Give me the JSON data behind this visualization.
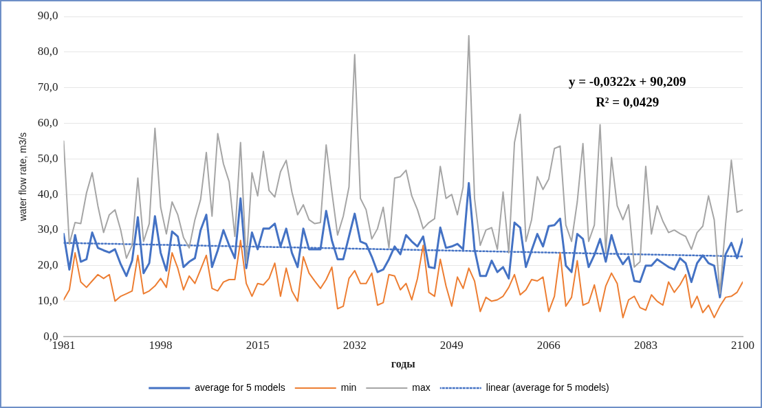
{
  "chart_data": {
    "type": "line",
    "xlabel": "годы",
    "ylabel": "water flow rate, m3/s",
    "marker": "none",
    "grid": "y",
    "legend": "bottom",
    "xlim": [
      1981,
      2100
    ],
    "xticks": [
      1981,
      1998,
      2015,
      2032,
      2049,
      2066,
      2083,
      2100
    ],
    "ylim": [
      0,
      90
    ],
    "yticks": [
      {
        "value": 0,
        "label": "0,0"
      },
      {
        "value": 10,
        "label": "10,0"
      },
      {
        "value": 20,
        "label": "20,0"
      },
      {
        "value": 30,
        "label": "30,0"
      },
      {
        "value": 40,
        "label": "40,0"
      },
      {
        "value": 50,
        "label": "50,0"
      },
      {
        "value": 60,
        "label": "60,0"
      },
      {
        "value": 70,
        "label": "70,0"
      },
      {
        "value": 80,
        "label": "80,0"
      },
      {
        "value": 90,
        "label": "90,0"
      }
    ],
    "x": [
      1981,
      1982,
      1983,
      1984,
      1985,
      1986,
      1987,
      1988,
      1989,
      1990,
      1991,
      1992,
      1993,
      1994,
      1995,
      1996,
      1997,
      1998,
      1999,
      2000,
      2001,
      2002,
      2003,
      2004,
      2005,
      2006,
      2007,
      2008,
      2009,
      2010,
      2011,
      2012,
      2013,
      2014,
      2015,
      2016,
      2017,
      2018,
      2019,
      2020,
      2021,
      2022,
      2023,
      2024,
      2025,
      2026,
      2027,
      2028,
      2029,
      2030,
      2031,
      2032,
      2033,
      2034,
      2035,
      2036,
      2037,
      2038,
      2039,
      2040,
      2041,
      2042,
      2043,
      2044,
      2045,
      2046,
      2047,
      2048,
      2049,
      2050,
      2051,
      2052,
      2053,
      2054,
      2055,
      2056,
      2057,
      2058,
      2059,
      2060,
      2061,
      2062,
      2063,
      2064,
      2065,
      2066,
      2067,
      2068,
      2069,
      2070,
      2071,
      2072,
      2073,
      2074,
      2075,
      2076,
      2077,
      2078,
      2079,
      2080,
      2081,
      2082,
      2083,
      2084,
      2085,
      2086,
      2087,
      2088,
      2089,
      2090,
      2091,
      2092,
      2093,
      2094,
      2095,
      2096,
      2097,
      2098,
      2099,
      2100
    ],
    "series": [
      {
        "name": "average for 5 models",
        "color": "#4472c4",
        "line_style": "solid",
        "values": [
          28.9,
          18.9,
          28.6,
          21.1,
          21.8,
          29.3,
          25,
          24.3,
          23.7,
          24.6,
          20.4,
          17.1,
          21.4,
          33.6,
          17.9,
          20.7,
          33.9,
          23.6,
          18.6,
          29.6,
          28.2,
          19.6,
          21.1,
          22.1,
          30,
          34.3,
          19.6,
          24.3,
          30,
          25.7,
          22.1,
          38.9,
          19.3,
          29.3,
          24.6,
          30.4,
          30.4,
          31.8,
          25.4,
          30.4,
          23.6,
          19.6,
          30.4,
          24.6,
          24.6,
          24.6,
          35.4,
          27.1,
          21.8,
          21.8,
          28.2,
          34.6,
          26.8,
          26.1,
          22.5,
          18.2,
          18.9,
          21.8,
          25.4,
          23.2,
          28.6,
          26.8,
          25.4,
          28.2,
          19.6,
          19.3,
          30.7,
          25,
          25.4,
          26.1,
          24.6,
          43.2,
          24.6,
          17.1,
          17.1,
          21.4,
          18.2,
          19.6,
          16.4,
          32.1,
          30.7,
          19.6,
          24.3,
          28.9,
          25.4,
          31.1,
          31.4,
          33.2,
          20,
          18.2,
          28.9,
          27.5,
          19.6,
          23,
          27.5,
          21.1,
          28.6,
          23.2,
          20.4,
          22.5,
          15.7,
          15.4,
          20,
          20,
          21.8,
          20.7,
          19.6,
          18.9,
          22.1,
          20.7,
          15.4,
          20.7,
          22.9,
          20.7,
          20,
          11.1,
          23.2,
          26.4,
          22.1,
          27.5
        ]
      },
      {
        "name": "min",
        "color": "#ed7d31",
        "line_style": "solid",
        "values": [
          10.4,
          13.2,
          23.6,
          15.4,
          13.9,
          15.7,
          17.5,
          16.4,
          17.5,
          10,
          11.4,
          12.1,
          12.9,
          22.9,
          12.1,
          12.9,
          14.3,
          16.4,
          13.9,
          23.6,
          19.3,
          13.2,
          17.1,
          15,
          18.9,
          22.9,
          13.6,
          12.9,
          15.4,
          16.1,
          16.1,
          27.1,
          15,
          11.4,
          15,
          14.6,
          16.4,
          20.7,
          11.4,
          19.3,
          12.9,
          10,
          22.5,
          17.9,
          15.7,
          13.6,
          16.1,
          19.6,
          7.9,
          8.6,
          16.4,
          18.6,
          15,
          15,
          17.9,
          8.9,
          9.6,
          17.5,
          17.1,
          13.2,
          15,
          10.4,
          16.4,
          25.7,
          12.5,
          11.4,
          21.8,
          14.3,
          8.6,
          16.8,
          13.6,
          19.3,
          15.7,
          7.1,
          11.1,
          10,
          10.4,
          11.4,
          13.9,
          17.5,
          11.8,
          13.2,
          16.1,
          15.7,
          16.8,
          7.1,
          11.4,
          23.6,
          8.6,
          11.1,
          21.4,
          8.9,
          9.6,
          14.6,
          7.1,
          14.3,
          17.9,
          15,
          5.4,
          10.4,
          11.4,
          8.2,
          7.5,
          11.8,
          10,
          8.9,
          15.4,
          12.5,
          14.6,
          17.5,
          8.2,
          11.4,
          6.8,
          8.9,
          5.4,
          8.6,
          11.1,
          11.4,
          12.5,
          15.4
        ]
      },
      {
        "name": "max",
        "color": "#a5a5a5",
        "line_style": "solid",
        "values": [
          55,
          26.1,
          32.1,
          31.8,
          40.4,
          46.1,
          36.8,
          29.3,
          34.3,
          35.7,
          30,
          22.1,
          25.7,
          44.6,
          26.8,
          31.8,
          58.6,
          36.4,
          28.9,
          37.9,
          34.3,
          27.9,
          25,
          32.9,
          38.6,
          51.8,
          33.9,
          57.1,
          48.6,
          43.6,
          28.2,
          54.6,
          20.7,
          46.1,
          39.6,
          52.1,
          41.1,
          39.3,
          46.4,
          49.6,
          40.7,
          34.3,
          37.1,
          32.9,
          31.8,
          32.1,
          53.9,
          40.7,
          28.6,
          33.9,
          42.1,
          79.3,
          38.9,
          35.7,
          27.5,
          30.4,
          36.4,
          25,
          44.6,
          45,
          46.8,
          39.6,
          35.7,
          30.4,
          32.1,
          33.2,
          47.9,
          38.9,
          40,
          34.3,
          42.1,
          84.6,
          38.9,
          25.7,
          30,
          30.7,
          24.6,
          40.7,
          23.6,
          54.6,
          62.5,
          26.8,
          32.9,
          45,
          41.4,
          44.3,
          52.9,
          53.6,
          31.4,
          26.8,
          37.9,
          54.3,
          26.8,
          31.4,
          59.6,
          23.6,
          50.4,
          36.8,
          32.9,
          37.1,
          19.6,
          21.1,
          47.9,
          28.9,
          36.8,
          32.5,
          29.3,
          30,
          29,
          28.2,
          24.6,
          29.3,
          31.1,
          39.6,
          32.9,
          12.1,
          31.8,
          49.6,
          35,
          35.7
        ]
      },
      {
        "name": "linear (average for 5 models)",
        "type": "line",
        "color": "#4472c4",
        "line_style": "dotted",
        "x": [
          1981,
          2100
        ],
        "values": [
          26.4,
          22.6
        ]
      }
    ],
    "annotations": [
      "y = -0,0322x + 90,209",
      "R² = 0,0429"
    ]
  }
}
